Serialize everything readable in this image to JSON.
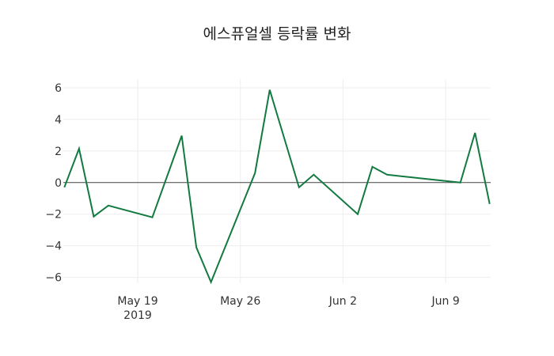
{
  "chart_data": {
    "type": "line",
    "title": "에스퓨얼셀 등락률 변화",
    "xlabel": "",
    "ylabel": "",
    "x": [
      "2019-05-14",
      "2019-05-15",
      "2019-05-16",
      "2019-05-17",
      "2019-05-20",
      "2019-05-22",
      "2019-05-23",
      "2019-05-24",
      "2019-05-27",
      "2019-05-28",
      "2019-05-30",
      "2019-05-31",
      "2019-06-03",
      "2019-06-04",
      "2019-06-05",
      "2019-06-10",
      "2019-06-11",
      "2019-06-12"
    ],
    "series": [
      {
        "name": "등락률",
        "color": "#127a40",
        "values": [
          -0.3,
          2.15,
          -2.15,
          -1.45,
          -2.2,
          2.97,
          -4.1,
          -6.3,
          0.6,
          5.87,
          -0.3,
          0.5,
          -2.0,
          1.0,
          0.5,
          0.0,
          3.15,
          -1.35
        ]
      }
    ],
    "ylim": [
      -6.5,
      6.5
    ],
    "yticks": [
      6,
      4,
      2,
      0,
      -2,
      -4,
      -6
    ],
    "ytick_labels": [
      "6",
      "4",
      "2",
      "0",
      "−2",
      "−4",
      "−6"
    ],
    "xticks": [
      {
        "date": "2019-05-19",
        "label": "May 19",
        "sublabel": "2019"
      },
      {
        "date": "2019-05-26",
        "label": "May 26",
        "sublabel": ""
      },
      {
        "date": "2019-06-02",
        "label": "Jun 2",
        "sublabel": ""
      },
      {
        "date": "2019-06-09",
        "label": "Jun 9",
        "sublabel": ""
      }
    ],
    "grid": true,
    "zeroline": true,
    "legend": "none"
  }
}
